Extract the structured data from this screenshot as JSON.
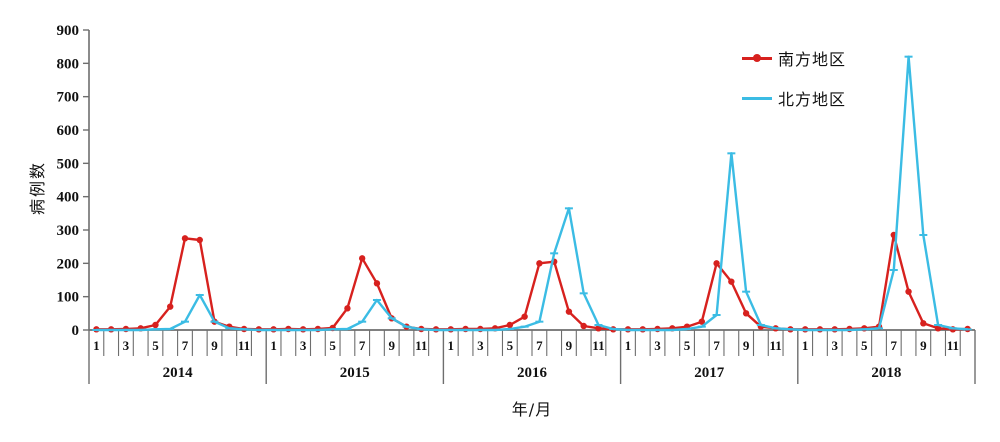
{
  "chart_data": {
    "type": "line",
    "title": "",
    "ylabel": "病例数",
    "xlabel": "年/月",
    "ylim": [
      0,
      900
    ],
    "y_ticks": [
      0,
      100,
      200,
      300,
      400,
      500,
      600,
      700,
      800,
      900
    ],
    "years": [
      "2014",
      "2015",
      "2016",
      "2017",
      "2018"
    ],
    "months_per_year": 12,
    "month_labels_shown": [
      "1",
      "3",
      "5",
      "7",
      "9",
      "11"
    ],
    "grid": false,
    "legend_position": "top-right",
    "axis_color": "#6e6e6e",
    "text_color": "#111111",
    "series": [
      {
        "name": "南方地区",
        "color": "#d7211e",
        "marker": "circle",
        "values_by_year": {
          "2014": [
            2,
            2,
            3,
            5,
            15,
            70,
            275,
            270,
            25,
            10,
            3,
            2
          ],
          "2015": [
            2,
            3,
            2,
            3,
            6,
            65,
            215,
            140,
            35,
            10,
            3,
            2
          ],
          "2016": [
            2,
            3,
            3,
            5,
            15,
            40,
            200,
            205,
            55,
            12,
            5,
            2
          ],
          "2017": [
            2,
            2,
            3,
            5,
            10,
            25,
            200,
            145,
            50,
            10,
            5,
            2
          ],
          "2018": [
            2,
            2,
            2,
            3,
            5,
            10,
            285,
            115,
            20,
            5,
            2,
            3
          ]
        }
      },
      {
        "name": "北方地区",
        "color": "#3bbce4",
        "marker": "dash",
        "values_by_year": {
          "2014": [
            0,
            0,
            0,
            0,
            2,
            3,
            25,
            105,
            25,
            5,
            2,
            0
          ],
          "2015": [
            0,
            0,
            0,
            0,
            2,
            3,
            25,
            90,
            35,
            10,
            2,
            0
          ],
          "2016": [
            0,
            0,
            0,
            0,
            3,
            10,
            25,
            230,
            365,
            110,
            15,
            3
          ],
          "2017": [
            0,
            0,
            0,
            0,
            3,
            10,
            45,
            530,
            115,
            15,
            5,
            2
          ],
          "2018": [
            0,
            0,
            0,
            0,
            2,
            5,
            180,
            820,
            285,
            15,
            5,
            2
          ]
        }
      }
    ]
  }
}
